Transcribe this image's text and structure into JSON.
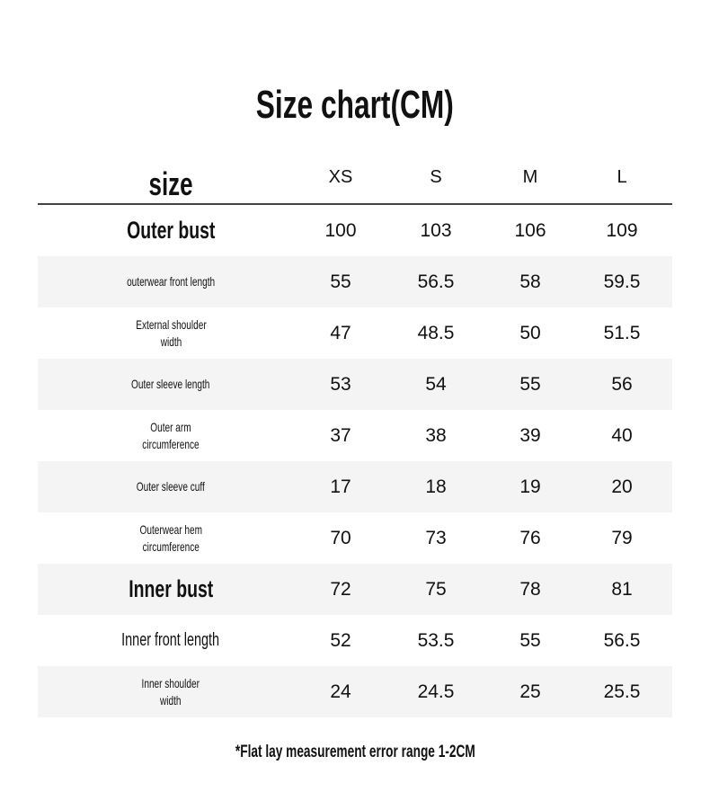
{
  "title": "Size chart(CM)",
  "table": {
    "header": {
      "label": "size",
      "sizes": [
        "XS",
        "S",
        "M",
        "L"
      ]
    },
    "rows": [
      {
        "label": [
          "Outer bust"
        ],
        "style": "big",
        "values": [
          "100",
          "103",
          "106",
          "109"
        ]
      },
      {
        "label": [
          "outerwear front length"
        ],
        "style": "sm",
        "values": [
          "55",
          "56.5",
          "58",
          "59.5"
        ]
      },
      {
        "label": [
          "External shoulder",
          "width"
        ],
        "style": "sm",
        "values": [
          "47",
          "48.5",
          "50",
          "51.5"
        ]
      },
      {
        "label": [
          "Outer sleeve length"
        ],
        "style": "sm",
        "values": [
          "53",
          "54",
          "55",
          "56"
        ]
      },
      {
        "label": [
          "Outer arm",
          "circumference"
        ],
        "style": "sm",
        "values": [
          "37",
          "38",
          "39",
          "40"
        ]
      },
      {
        "label": [
          "Outer sleeve cuff"
        ],
        "style": "sm",
        "values": [
          "17",
          "18",
          "19",
          "20"
        ]
      },
      {
        "label": [
          "Outerwear hem",
          "circumference"
        ],
        "style": "sm",
        "values": [
          "70",
          "73",
          "76",
          "79"
        ]
      },
      {
        "label": [
          "Inner bust"
        ],
        "style": "big",
        "values": [
          "72",
          "75",
          "78",
          "81"
        ]
      },
      {
        "label": [
          "Inner front length"
        ],
        "style": "med",
        "values": [
          "52",
          "53.5",
          "55",
          "56.5"
        ]
      },
      {
        "label": [
          "Inner shoulder",
          "width"
        ],
        "style": "sm",
        "values": [
          "24",
          "24.5",
          "25",
          "25.5"
        ]
      }
    ]
  },
  "note": "*Flat lay measurement error range 1-2CM",
  "colors": {
    "stripe": "#f4f4f4",
    "rule": "#444444",
    "text": "#111111"
  }
}
